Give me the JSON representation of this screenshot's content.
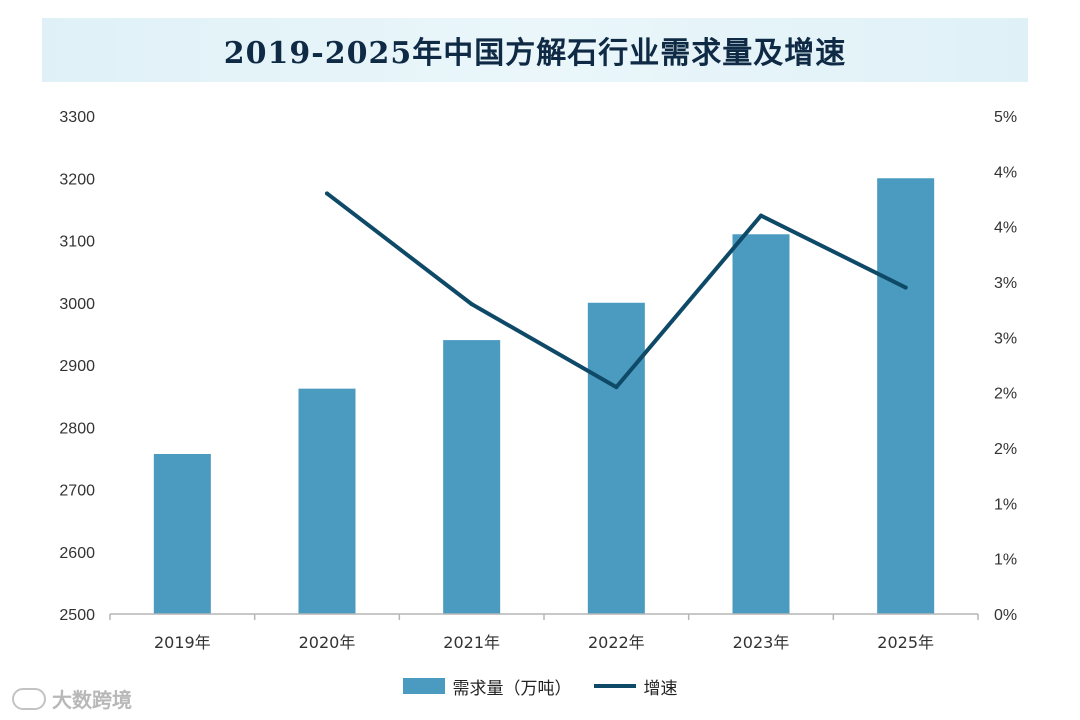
{
  "chart_data": {
    "type": "bar",
    "title": "2019-2025年中国方解石行业需求量及增速",
    "categories": [
      "2019年",
      "2020年",
      "2021年",
      "2022年",
      "2023年",
      "2025年"
    ],
    "series": [
      {
        "name": "需求量（万吨）",
        "type": "bar",
        "axis": "left",
        "color": "#4a9bbf",
        "values": [
          2757,
          2862,
          2940,
          3000,
          3110,
          3200
        ]
      },
      {
        "name": "增速",
        "type": "line",
        "axis": "right",
        "color": "#0e4a68",
        "values": [
          null,
          3.8,
          2.8,
          2.05,
          3.6,
          2.95
        ]
      }
    ],
    "left_axis": {
      "ylim": [
        2500,
        3300
      ],
      "ticks": [
        2500,
        2600,
        2700,
        2800,
        2900,
        3000,
        3100,
        3200,
        3300
      ],
      "tick_labels": [
        "2500",
        "2600",
        "2700",
        "2800",
        "2900",
        "3000",
        "3100",
        "3200",
        "3300"
      ]
    },
    "right_axis": {
      "ylim": [
        0,
        4.5
      ],
      "ticks": [
        0,
        0.5,
        1,
        1.5,
        2,
        2.5,
        3,
        3.5,
        4,
        4.5
      ],
      "tick_labels": [
        "0%",
        "1%",
        "1%",
        "2%",
        "2%",
        "3%",
        "3%",
        "4%",
        "4%",
        "5%"
      ]
    },
    "grid": false,
    "legend_position": "bottom"
  },
  "watermark": {
    "text": "大数跨境"
  }
}
